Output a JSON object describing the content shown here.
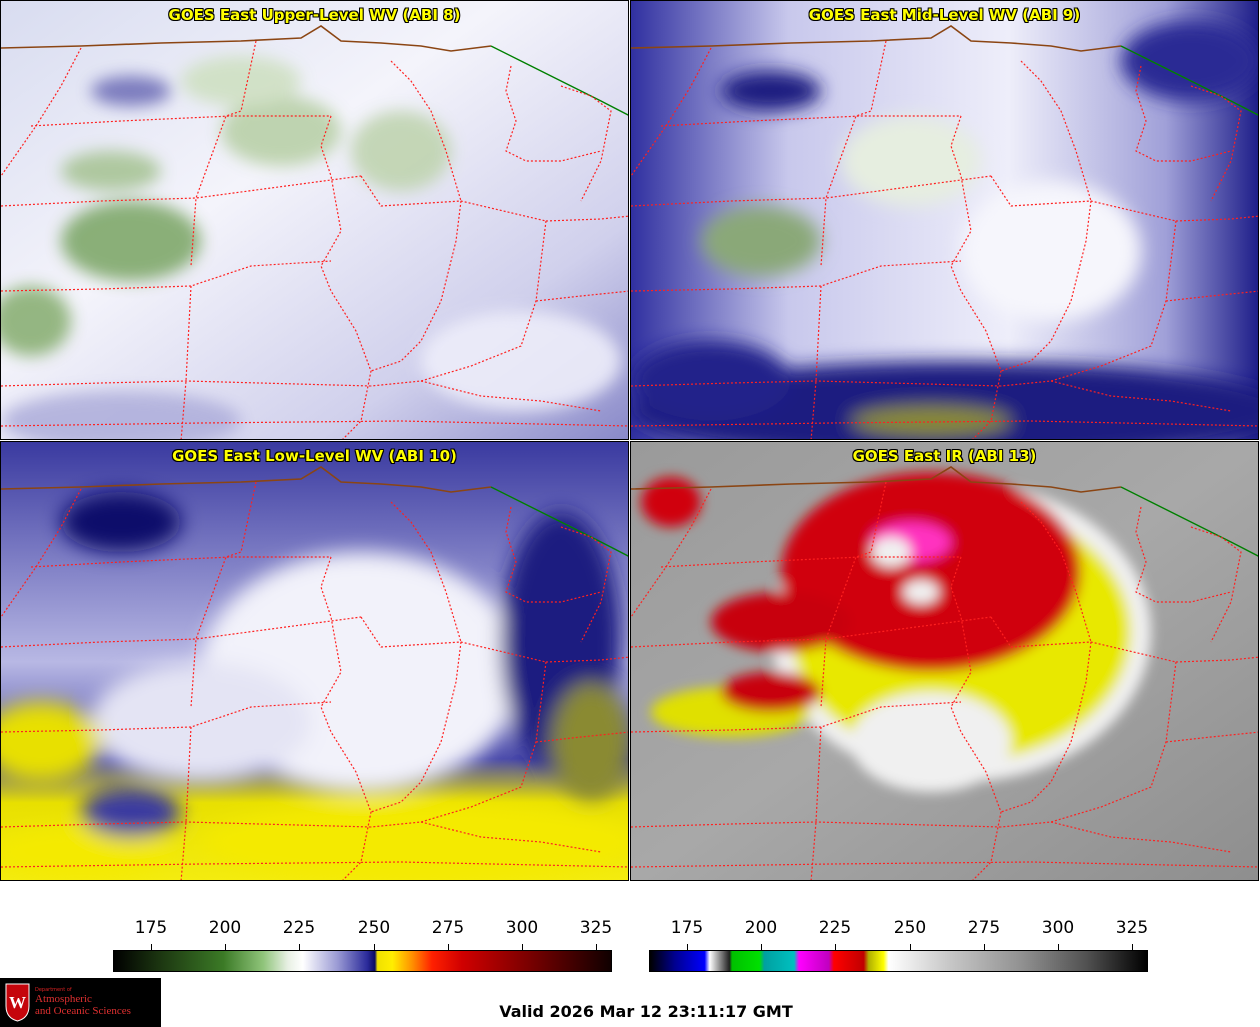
{
  "panels": [
    {
      "title": "GOES East Upper-Level WV (ABI 8)",
      "colormap": "wv"
    },
    {
      "title": "GOES East Mid-Level WV (ABI 9)",
      "colormap": "wv"
    },
    {
      "title": "GOES East Low-Level WV (ABI 10)",
      "colormap": "wv"
    },
    {
      "title": "GOES East IR (ABI 13)",
      "colormap": "ir"
    }
  ],
  "colorbars": {
    "left": {
      "ticks": [
        "175",
        "200",
        "225",
        "250",
        "275",
        "300",
        "325"
      ]
    },
    "right": {
      "ticks": [
        "175",
        "200",
        "225",
        "250",
        "275",
        "300",
        "325"
      ]
    }
  },
  "footer": {
    "valid_text": "Valid 2026 Mar 12 23:11:17 GMT",
    "logo": {
      "department": "Department of",
      "line1": "Atmospheric",
      "line2": "and Oceanic Sciences",
      "crest_letter": "W"
    }
  },
  "colors": {
    "title_text": "#ffff00",
    "state_borders": "#ff2020",
    "country_border": "#8b4513",
    "lake_border": "#008000"
  }
}
